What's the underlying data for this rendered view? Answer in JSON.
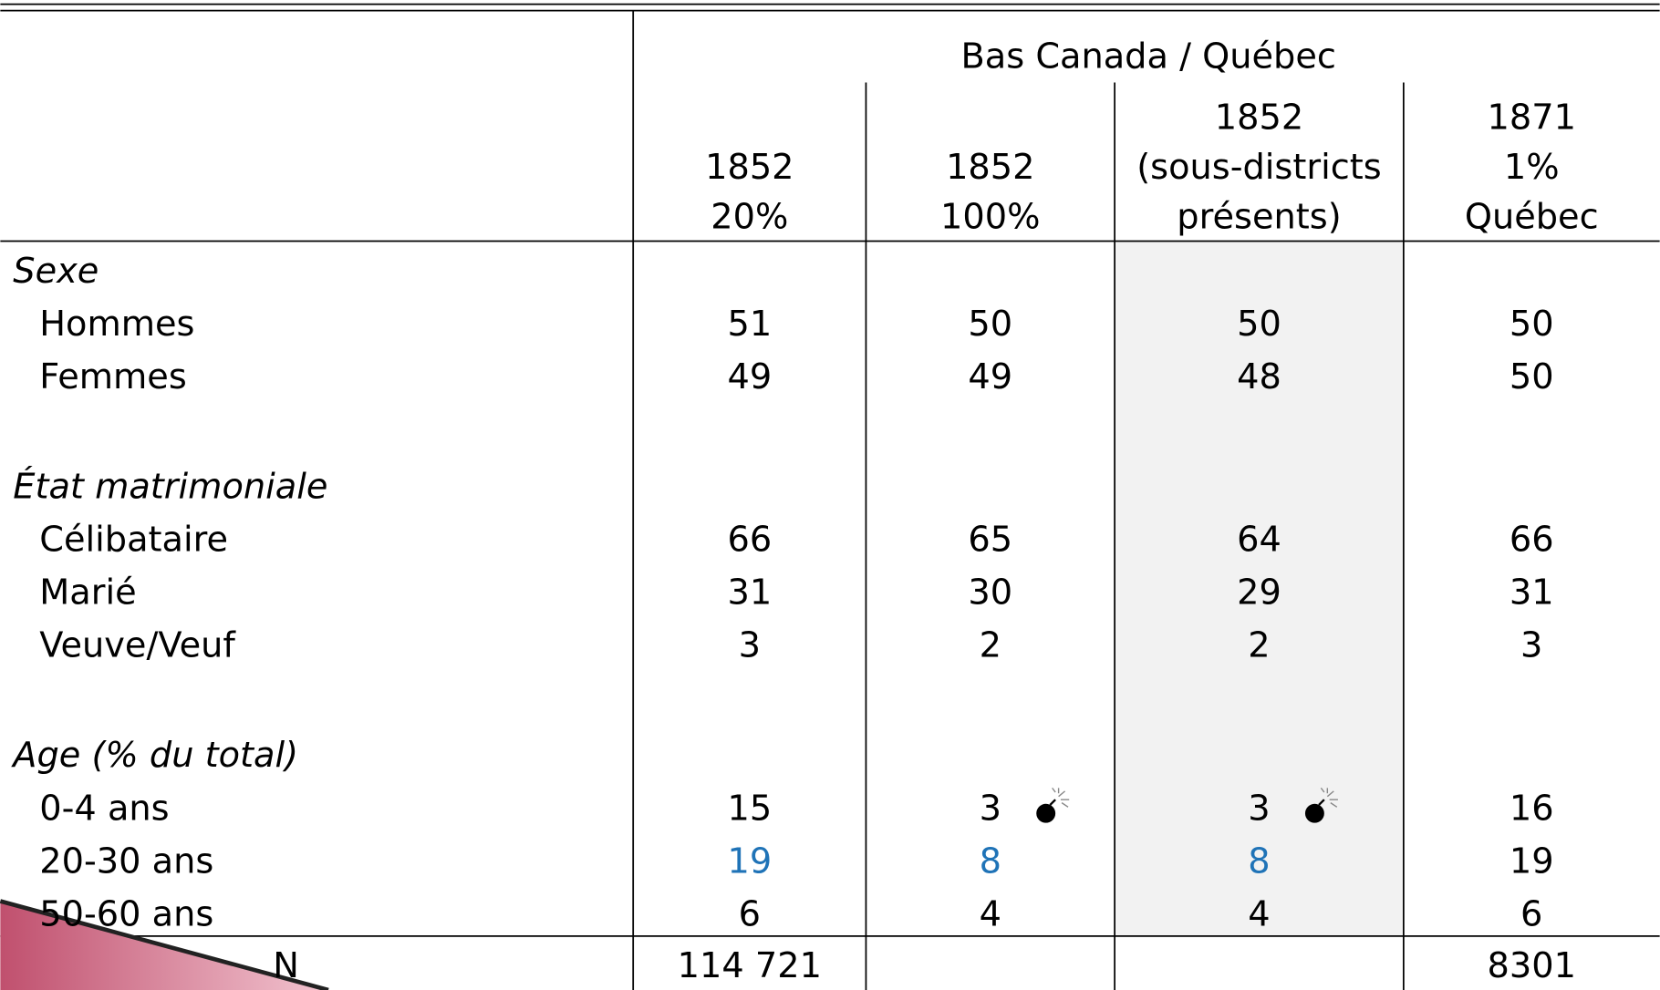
{
  "table": {
    "group_header": "Bas Canada / Québec",
    "columns": [
      [
        "1852",
        "20%"
      ],
      [
        "1852",
        "100%"
      ],
      [
        "1852",
        "(sous-districts",
        "présents)"
      ],
      [
        "1871",
        "1%",
        "Québec"
      ]
    ],
    "shaded_column": 2,
    "shade_color": "#f2f2f2",
    "sections": [
      {
        "title": "Sexe",
        "rows": [
          {
            "label": "Hommes",
            "cells": [
              51,
              50,
              50,
              50
            ]
          },
          {
            "label": "Femmes",
            "cells": [
              49,
              49,
              48,
              50
            ]
          }
        ]
      },
      {
        "title": "État matrimoniale",
        "rows": [
          {
            "label": "Célibataire",
            "cells": [
              66,
              65,
              64,
              66
            ]
          },
          {
            "label": "Marié",
            "cells": [
              31,
              30,
              29,
              31
            ]
          },
          {
            "label": "Veuve/Veuf",
            "cells": [
              3,
              2,
              2,
              3
            ]
          }
        ]
      },
      {
        "title": "Age (% du total)",
        "rows": [
          {
            "label": "0-4 ans",
            "cells": [
              15,
              3,
              3,
              16
            ]
          },
          {
            "label": "20-30 ans",
            "cells": [
              19,
              8,
              8,
              19
            ],
            "cell_colors": [
              "#1f73b7",
              "#1f73b7",
              "#1f73b7",
              "#000000"
            ]
          },
          {
            "label": "50-60 ans",
            "cells": [
              6,
              4,
              4,
              6
            ]
          }
        ]
      }
    ],
    "total": {
      "label": "N",
      "cells": [
        "114 721",
        null,
        null,
        "8301"
      ]
    }
  }
}
